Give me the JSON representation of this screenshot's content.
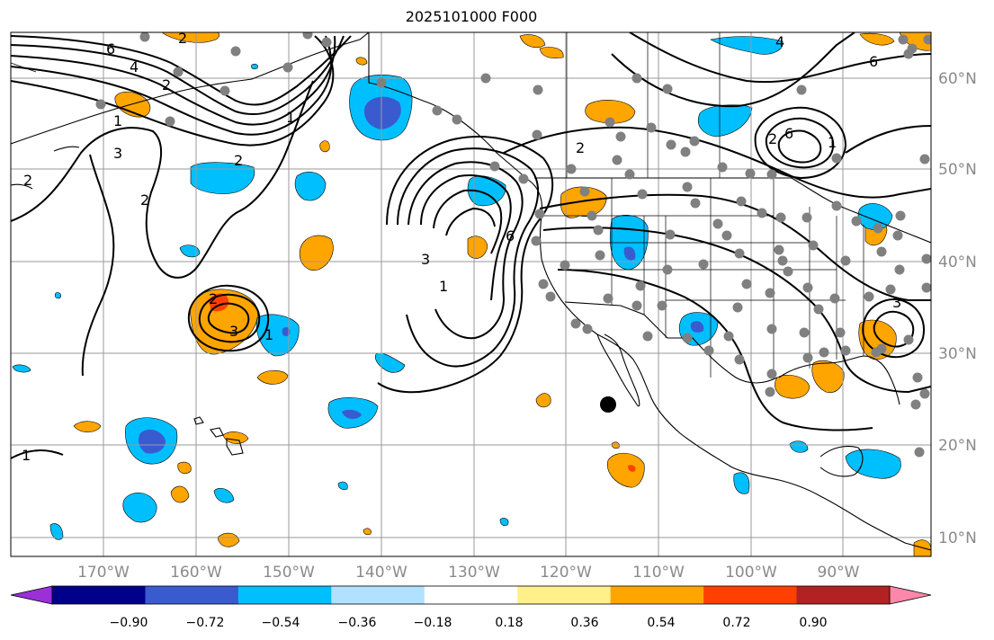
{
  "title": "2025101000 F000",
  "map": {
    "projection": "lat-lon",
    "lon_labels": [
      "170°W",
      "160°W",
      "150°W",
      "140°W",
      "130°W",
      "120°W",
      "110°W",
      "100°W",
      "90°W"
    ],
    "lat_labels": [
      "60°N",
      "50°N",
      "40°N",
      "30°N",
      "20°N",
      "10°N"
    ],
    "contour_labels": [
      "6",
      "4",
      "2",
      "1",
      "3",
      "2",
      "2",
      "1",
      "3",
      "2",
      "1",
      "3",
      "1",
      "6",
      "2",
      "1",
      "2",
      "6",
      "4",
      "2",
      "6",
      "1",
      "3",
      "2"
    ]
  },
  "colorbar": {
    "tick_labels": [
      "−0.90",
      "−0.72",
      "−0.54",
      "−0.36",
      "−0.18",
      "0.18",
      "0.36",
      "0.54",
      "0.72",
      "0.90"
    ],
    "colors": [
      "#9b30d9",
      "#00008b",
      "#3a5bd0",
      "#00bfff",
      "#b0e2ff",
      "#ffffff",
      "#fff08a",
      "#ffa500",
      "#ff4000",
      "#b22222",
      "#ff88aa"
    ],
    "extend": "both"
  },
  "colors": {
    "positive_fill": "#ffa500",
    "positive_light": "#fff08a",
    "negative_fill": "#00bfff",
    "negative_deep": "#3a5bd0",
    "station_dot": "#808080",
    "grid": "#9a9a9a"
  }
}
